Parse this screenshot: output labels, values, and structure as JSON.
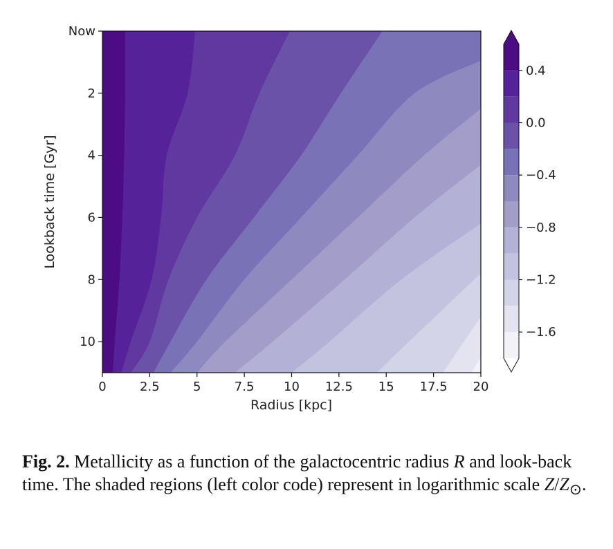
{
  "chart_data": {
    "type": "contour",
    "xlabel": "Radius [kpc]",
    "ylabel": "Lookback time [Gyr]",
    "xlim": [
      0,
      20
    ],
    "ylim": [
      11,
      0
    ],
    "x_ticks": [
      "0",
      "2.5",
      "5",
      "7.5",
      "10",
      "12.5",
      "15",
      "17.5",
      "20"
    ],
    "x_tick_values": [
      0,
      2.5,
      5,
      7.5,
      10,
      12.5,
      15,
      17.5,
      20
    ],
    "y_ticks": [
      "Now",
      "2",
      "4",
      "6",
      "8",
      "10"
    ],
    "y_tick_values": [
      0,
      2,
      4,
      6,
      8,
      10
    ],
    "colorbar": {
      "levels": [
        0.6,
        0.4,
        0.2,
        0.0,
        -0.2,
        -0.4,
        -0.6,
        -0.8,
        -1.0,
        -1.2,
        -1.4,
        -1.6,
        -1.8
      ],
      "colors": [
        "#4b0c84",
        "#55229a",
        "#6038a0",
        "#6a52a8",
        "#7a72b6",
        "#8e8ac0",
        "#a29ec9",
        "#b3b1d5",
        "#c3c3df",
        "#d4d4e8",
        "#e4e4f0",
        "#f2f2f8"
      ],
      "tick_labels": [
        "0.4",
        "0.0",
        "−0.4",
        "−0.8",
        "−1.2",
        "−1.6"
      ],
      "tick_values": [
        0.4,
        0.0,
        -0.4,
        -0.8,
        -1.2,
        -1.6
      ],
      "extend": "both"
    },
    "contour_boundaries": [
      {
        "level": 0.4,
        "points": [
          [
            1.2,
            0
          ],
          [
            1.2,
            2
          ],
          [
            1.15,
            4
          ],
          [
            1.05,
            6
          ],
          [
            0.9,
            8
          ],
          [
            0.65,
            10
          ],
          [
            0.55,
            11
          ]
        ]
      },
      {
        "level": 0.2,
        "points": [
          [
            4.9,
            0
          ],
          [
            4.5,
            2
          ],
          [
            3.4,
            4
          ],
          [
            3.1,
            6
          ],
          [
            2.6,
            8
          ],
          [
            1.5,
            10
          ],
          [
            1.0,
            11
          ]
        ]
      },
      {
        "level": 0.0,
        "points": [
          [
            9.9,
            0
          ],
          [
            8.3,
            2
          ],
          [
            7.0,
            4
          ],
          [
            5.0,
            6
          ],
          [
            3.5,
            8
          ],
          [
            2.5,
            10
          ],
          [
            1.5,
            11
          ]
        ]
      },
      {
        "level": -0.2,
        "points": [
          [
            14.8,
            0
          ],
          [
            12.6,
            2
          ],
          [
            10.5,
            4
          ],
          [
            8.0,
            6
          ],
          [
            5.5,
            8
          ],
          [
            3.6,
            10
          ],
          [
            2.7,
            11
          ]
        ]
      },
      {
        "level": -0.4,
        "points": [
          [
            20,
            0.95
          ],
          [
            16.5,
            2
          ],
          [
            13.5,
            4
          ],
          [
            10.5,
            6
          ],
          [
            7.5,
            8
          ],
          [
            5.0,
            10
          ],
          [
            3.6,
            11
          ]
        ]
      },
      {
        "level": -0.6,
        "points": [
          [
            20,
            2.5
          ],
          [
            17.0,
            4
          ],
          [
            13.5,
            6
          ],
          [
            10.0,
            8
          ],
          [
            6.5,
            10
          ],
          [
            5.0,
            11
          ]
        ]
      },
      {
        "level": -0.8,
        "points": [
          [
            20,
            4.3
          ],
          [
            16.5,
            6
          ],
          [
            12.8,
            8
          ],
          [
            9.0,
            10
          ],
          [
            7.0,
            11
          ]
        ]
      },
      {
        "level": -1.0,
        "points": [
          [
            20,
            6.2
          ],
          [
            15.8,
            8
          ],
          [
            12.0,
            10
          ],
          [
            10.0,
            11
          ]
        ]
      },
      {
        "level": -1.2,
        "points": [
          [
            20,
            7.8
          ],
          [
            16.2,
            10
          ],
          [
            14.5,
            11
          ]
        ]
      },
      {
        "level": -1.4,
        "points": [
          [
            20,
            9.2
          ],
          [
            18.0,
            11
          ]
        ]
      },
      {
        "level": -1.6,
        "points": [
          [
            20,
            10.5
          ],
          [
            19.5,
            11
          ]
        ]
      }
    ]
  },
  "caption": {
    "label": "Fig. 2.",
    "text_1": " Metallicity as a function of the galactocentric radius ",
    "var_r": "R",
    "text_2": " and look-back time. The shaded regions (left color code) represent in logarithmic scale ",
    "z": "Z",
    "slash": "/",
    "z_sun": "Z",
    "sun_symbol": "⊙",
    "end": "."
  }
}
